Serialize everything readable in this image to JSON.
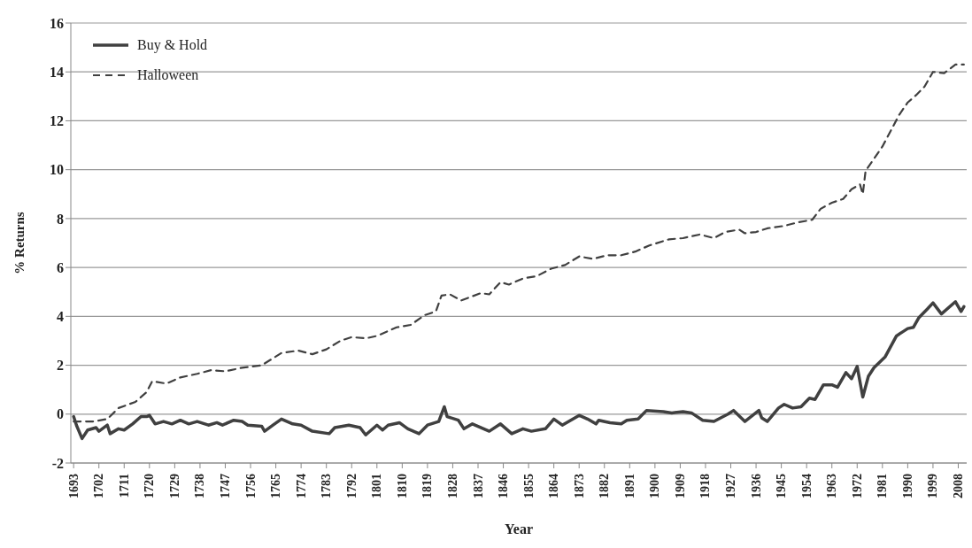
{
  "chart_data": {
    "type": "line",
    "xlabel": "Year",
    "ylabel": "% Returns",
    "xlim": [
      1692,
      2011
    ],
    "xticks": [
      1693,
      1702,
      1711,
      1720,
      1729,
      1738,
      1747,
      1756,
      1765,
      1774,
      1783,
      1792,
      1801,
      1810,
      1819,
      1828,
      1837,
      1846,
      1855,
      1864,
      1873,
      1882,
      1891,
      1900,
      1909,
      1918,
      1927,
      1936,
      1945,
      1954,
      1963,
      1972,
      1981,
      1990,
      1999,
      2008
    ],
    "ylim": [
      -2,
      16
    ],
    "yticks": [
      -2,
      0,
      2,
      4,
      6,
      8,
      10,
      12,
      14,
      16
    ],
    "grid": "y",
    "legend": "top left",
    "marker": "none",
    "series": [
      {
        "name": "Buy & Hold",
        "color": "#404040",
        "line_style": "solid",
        "x": [
          1693,
          1694,
          1696,
          1698,
          1701,
          1702,
          1705,
          1706,
          1709,
          1711,
          1714,
          1717,
          1719,
          1720,
          1722,
          1725,
          1728,
          1731,
          1734,
          1737,
          1741,
          1744,
          1746,
          1750,
          1753,
          1755,
          1760,
          1761,
          1764,
          1767,
          1771,
          1774,
          1778,
          1784,
          1786,
          1791,
          1795,
          1797,
          1801,
          1803,
          1805,
          1809,
          1812,
          1816,
          1819,
          1823,
          1825,
          1826,
          1830,
          1832,
          1835,
          1839,
          1841,
          1845,
          1849,
          1853,
          1856,
          1861,
          1864,
          1867,
          1873,
          1876,
          1879,
          1880,
          1884,
          1888,
          1890,
          1894,
          1897,
          1903,
          1906,
          1910,
          1913,
          1917,
          1921,
          1926,
          1928,
          1932,
          1937,
          1938,
          1940,
          1944,
          1946,
          1949,
          1952,
          1955,
          1957,
          1960,
          1963,
          1965,
          1968,
          1970,
          1972,
          1974,
          1976,
          1978,
          1982,
          1986,
          1990,
          1992,
          1994,
          1997,
          1999,
          2002,
          2007,
          2009,
          2010
        ],
        "values": [
          -0.1,
          -0.45,
          -1.0,
          -0.65,
          -0.55,
          -0.7,
          -0.45,
          -0.8,
          -0.6,
          -0.65,
          -0.4,
          -0.1,
          -0.1,
          -0.05,
          -0.4,
          -0.3,
          -0.4,
          -0.25,
          -0.4,
          -0.3,
          -0.45,
          -0.35,
          -0.45,
          -0.25,
          -0.3,
          -0.45,
          -0.5,
          -0.7,
          -0.45,
          -0.2,
          -0.4,
          -0.45,
          -0.7,
          -0.8,
          -0.55,
          -0.45,
          -0.55,
          -0.85,
          -0.45,
          -0.65,
          -0.45,
          -0.35,
          -0.6,
          -0.8,
          -0.45,
          -0.3,
          0.3,
          -0.1,
          -0.25,
          -0.6,
          -0.4,
          -0.6,
          -0.7,
          -0.4,
          -0.8,
          -0.6,
          -0.7,
          -0.6,
          -0.2,
          -0.45,
          -0.05,
          -0.2,
          -0.4,
          -0.25,
          -0.35,
          -0.4,
          -0.25,
          -0.2,
          0.15,
          0.1,
          0.05,
          0.1,
          0.05,
          -0.25,
          -0.3,
          0.0,
          0.15,
          -0.3,
          0.15,
          -0.15,
          -0.3,
          0.25,
          0.4,
          0.25,
          0.3,
          0.65,
          0.6,
          1.2,
          1.2,
          1.1,
          1.7,
          1.45,
          1.95,
          0.7,
          1.55,
          1.9,
          2.35,
          3.2,
          3.5,
          3.55,
          3.95,
          4.3,
          4.55,
          4.1,
          4.6,
          4.2,
          4.4
        ]
      },
      {
        "name": "Halloween",
        "color": "#404040",
        "line_style": "dashed",
        "x": [
          1693,
          1700,
          1705,
          1709,
          1715,
          1719,
          1721,
          1726,
          1731,
          1737,
          1742,
          1747,
          1753,
          1760,
          1767,
          1773,
          1778,
          1783,
          1788,
          1792,
          1797,
          1801,
          1808,
          1813,
          1818,
          1822,
          1824,
          1827,
          1831,
          1838,
          1841,
          1845,
          1848,
          1853,
          1858,
          1863,
          1868,
          1873,
          1878,
          1883,
          1888,
          1893,
          1898,
          1905,
          1910,
          1916,
          1921,
          1925,
          1930,
          1932,
          1936,
          1940,
          1946,
          1951,
          1956,
          1959,
          1963,
          1967,
          1970,
          1973,
          1974,
          1975,
          1978,
          1981,
          1984,
          1987,
          1990,
          1993,
          1996,
          1999,
          2003,
          2007,
          2010
        ],
        "values": [
          -0.3,
          -0.3,
          -0.2,
          0.25,
          0.5,
          0.9,
          1.35,
          1.25,
          1.5,
          1.65,
          1.8,
          1.75,
          1.9,
          2.0,
          2.5,
          2.6,
          2.45,
          2.65,
          3.0,
          3.15,
          3.1,
          3.2,
          3.55,
          3.65,
          4.05,
          4.2,
          4.85,
          4.9,
          4.65,
          4.95,
          4.9,
          5.4,
          5.3,
          5.55,
          5.65,
          5.95,
          6.1,
          6.45,
          6.35,
          6.5,
          6.5,
          6.65,
          6.9,
          7.15,
          7.2,
          7.35,
          7.2,
          7.45,
          7.55,
          7.4,
          7.45,
          7.6,
          7.7,
          7.85,
          7.95,
          8.4,
          8.65,
          8.8,
          9.2,
          9.4,
          9.0,
          9.95,
          10.45,
          10.95,
          11.6,
          12.25,
          12.75,
          13.05,
          13.4,
          14.0,
          13.95,
          14.3,
          14.3
        ]
      }
    ]
  }
}
